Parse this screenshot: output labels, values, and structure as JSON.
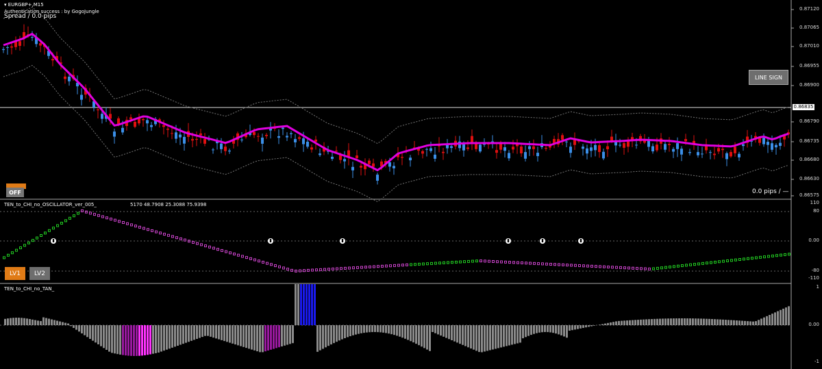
{
  "chart_header": {
    "symbol": "EURGBP+,M15",
    "auth_text": "Authentication success : by GogoJungle",
    "spread_text": "Spread / 0.0 pips"
  },
  "price_axis": [
    "0.87120",
    "0.87065",
    "0.87010",
    "0.86955",
    "0.86900",
    "0.86835",
    "0.86790",
    "0.86735",
    "0.86680",
    "0.86630",
    "0.86575"
  ],
  "current_price": "0.86835",
  "buttons": {
    "line_sign": "LINE SIGN",
    "off": "OFF",
    "lv1": "LV1",
    "lv2": "LV2"
  },
  "pips_display": "0.0 pips / —",
  "oscillator": {
    "title": "TEN_to_CHI_no_OSCILLATOR_ver_005_",
    "values_text": "5170 48.7908 25.3088 75.9398",
    "axis": [
      "110",
      "80",
      "0.00",
      "-80",
      "-110"
    ]
  },
  "tan": {
    "title": "TEN_to_CHI_no_TAN_",
    "axis": [
      "1",
      "0.00",
      "-1"
    ]
  },
  "colors": {
    "bull": "#3b8fe8",
    "bear": "#e01010",
    "ma": "#e000e0",
    "ma_alt": "#33e0e0",
    "band": "#777777",
    "osc_up": "#22cc22",
    "osc_down": "#cc44cc",
    "hist_neutral": "#8a8a8a",
    "hist_purple": "#9a1aa0",
    "hist_pink": "#ff33ff",
    "hist_blue": "#1a1aee"
  }
}
